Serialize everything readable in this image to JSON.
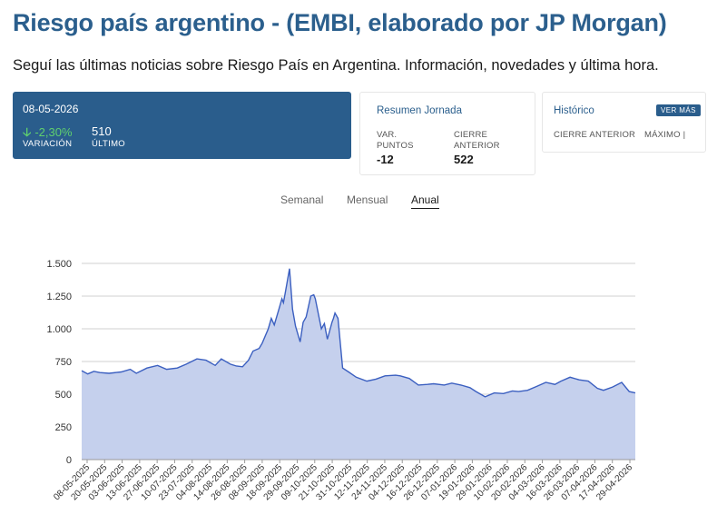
{
  "page": {
    "title": "Riesgo país argentino - (EMBI, elaborado por JP Morgan)",
    "subtitle": "Seguí las últimas noticias sobre Riesgo País en Argentina. Información, novedades y última hora."
  },
  "summary": {
    "date": "08-05-2026",
    "variation_value": "-2,30%",
    "variation_label": "VARIACIÓN",
    "last_value": "510",
    "last_label": "ÚLTIMO"
  },
  "resumen": {
    "title": "Resumen Jornada",
    "var_label_1": "VAR.",
    "var_label_2": "PUNTOS",
    "var_value": "-12",
    "cierre_label_1": "CIERRE",
    "cierre_label_2": "ANTERIOR",
    "cierre_value": "522"
  },
  "historico": {
    "title": "Histórico",
    "button": "VER MÁS",
    "cierre_label": "CIERRE ANTERIOR",
    "maximo_label": "MÁXIMO |"
  },
  "tabs": [
    {
      "label": "Semanal",
      "active": false
    },
    {
      "label": "Mensual",
      "active": false
    },
    {
      "label": "Anual",
      "active": true
    }
  ],
  "colors": {
    "accent": "#2a5d8c",
    "positive": "#5fd06e",
    "line": "#3b5fc0",
    "area": "#c5d0ed"
  },
  "chart_data": {
    "type": "area",
    "ylim": [
      0,
      1500
    ],
    "yticks": [
      0,
      250,
      500,
      750,
      1000,
      1250,
      1500
    ],
    "ytick_labels": [
      "0",
      "250",
      "500",
      "750",
      "1.000",
      "1.250",
      "1.500"
    ],
    "grid": true,
    "xtick_labels": [
      "08-05-2025",
      "20-05-2025",
      "03-06-2025",
      "13-06-2025",
      "27-06-2025",
      "10-07-2025",
      "23-07-2025",
      "04-08-2025",
      "14-08-2025",
      "26-08-2025",
      "08-09-2025",
      "18-09-2025",
      "29-09-2025",
      "09-10-2025",
      "21-10-2025",
      "31-10-2025",
      "12-11-2025",
      "24-11-2025",
      "04-12-2025",
      "16-12-2025",
      "26-12-2025",
      "07-01-2026",
      "19-01-2026",
      "29-01-2026",
      "10-02-2026",
      "20-02-2026",
      "04-03-2026",
      "16-03-2026",
      "26-03-2026",
      "07-04-2026",
      "17-04-2026",
      "29-04-2026"
    ],
    "x": [
      "2025-05-08",
      "2025-05-12",
      "2025-05-16",
      "2025-05-20",
      "2025-05-26",
      "2025-06-03",
      "2025-06-09",
      "2025-06-13",
      "2025-06-20",
      "2025-06-27",
      "2025-07-03",
      "2025-07-10",
      "2025-07-16",
      "2025-07-23",
      "2025-07-29",
      "2025-08-04",
      "2025-08-08",
      "2025-08-14",
      "2025-08-18",
      "2025-08-22",
      "2025-08-26",
      "2025-08-29",
      "2025-09-02",
      "2025-09-04",
      "2025-09-08",
      "2025-09-10",
      "2025-09-12",
      "2025-09-15",
      "2025-09-17",
      "2025-09-18",
      "2025-09-19",
      "2025-09-22",
      "2025-09-24",
      "2025-09-26",
      "2025-09-29",
      "2025-10-01",
      "2025-10-03",
      "2025-10-06",
      "2025-10-08",
      "2025-10-09",
      "2025-10-13",
      "2025-10-15",
      "2025-10-17",
      "2025-10-20",
      "2025-10-21",
      "2025-10-22",
      "2025-10-24",
      "2025-10-27",
      "2025-10-31",
      "2025-11-05",
      "2025-11-12",
      "2025-11-18",
      "2025-11-24",
      "2025-12-01",
      "2025-12-04",
      "2025-12-10",
      "2025-12-16",
      "2025-12-22",
      "2025-12-26",
      "2026-01-02",
      "2026-01-07",
      "2026-01-13",
      "2026-01-19",
      "2026-01-23",
      "2026-01-29",
      "2026-02-04",
      "2026-02-10",
      "2026-02-16",
      "2026-02-20",
      "2026-02-26",
      "2026-03-04",
      "2026-03-10",
      "2026-03-16",
      "2026-03-20",
      "2026-03-26",
      "2026-04-01",
      "2026-04-07",
      "2026-04-13",
      "2026-04-17",
      "2026-04-23",
      "2026-04-29",
      "2026-05-04",
      "2026-05-08"
    ],
    "series": [
      {
        "values": [
          680,
          655,
          675,
          665,
          660,
          670,
          690,
          660,
          700,
          720,
          690,
          700,
          730,
          770,
          760,
          720,
          770,
          730,
          715,
          710,
          760,
          830,
          850,
          890,
          1000,
          1080,
          1030,
          1150,
          1230,
          1200,
          1260,
          1460,
          1150,
          1020,
          900,
          1050,
          1090,
          1250,
          1260,
          1230,
          1000,
          1040,
          920,
          1050,
          1080,
          1120,
          1080,
          700,
          670,
          630,
          600,
          615,
          640,
          645,
          640,
          620,
          570,
          575,
          580,
          570,
          585,
          570,
          550,
          520,
          480,
          510,
          505,
          525,
          520,
          530,
          560,
          590,
          575,
          600,
          630,
          610,
          600,
          545,
          530,
          555,
          590,
          520,
          510
        ]
      }
    ]
  }
}
